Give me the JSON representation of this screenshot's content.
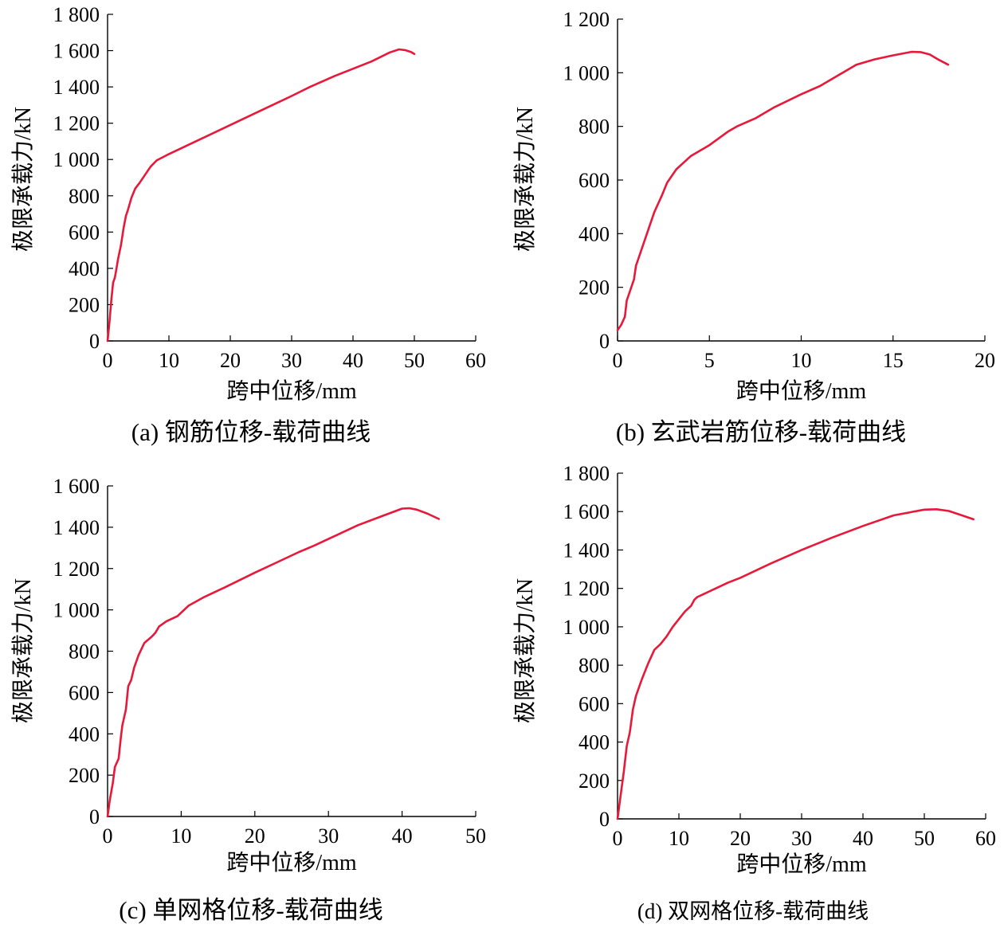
{
  "chart_data": [
    {
      "type": "line",
      "caption": "(a) 钢筋位移-载荷曲线",
      "xlabel": "跨中位移/mm",
      "ylabel": "极限承载力/kN",
      "xlim": [
        0,
        60
      ],
      "ylim": [
        0,
        1800
      ],
      "xticks": [
        0,
        10,
        20,
        30,
        40,
        50,
        60
      ],
      "xtick_labels": [
        "0",
        "10",
        "20",
        "30",
        "40",
        "50",
        "60"
      ],
      "yticks": [
        0,
        200,
        400,
        600,
        800,
        1000,
        1200,
        1400,
        1600,
        1800
      ],
      "ytick_labels": [
        "0",
        "200",
        "400",
        "600",
        "800",
        "1 000",
        "1 200",
        "1 400",
        "1 600",
        "1 800"
      ],
      "color": "#e8183a",
      "series": [
        {
          "x": [
            0,
            0.3,
            0.6,
            0.9,
            1.2,
            1.5,
            1.7,
            2.2,
            2.6,
            3.0,
            3.3,
            3.9,
            4.5,
            5.2,
            6.0,
            7.0,
            8.0,
            10,
            15,
            20,
            25,
            30,
            33,
            37,
            40,
            43,
            46,
            47.5,
            48.5,
            49.5,
            50
          ],
          "y": [
            0,
            100,
            220,
            320,
            350,
            410,
            450,
            530,
            620,
            690,
            720,
            790,
            840,
            870,
            910,
            960,
            995,
            1030,
            1110,
            1190,
            1270,
            1350,
            1400,
            1460,
            1500,
            1540,
            1590,
            1607,
            1603,
            1592,
            1582
          ]
        }
      ]
    },
    {
      "type": "line",
      "caption": "(b) 玄武岩筋位移-载荷曲线",
      "xlabel": "跨中位移/mm",
      "ylabel": "极限承载力/kN",
      "xlim": [
        0,
        20
      ],
      "ylim": [
        0,
        1200
      ],
      "xticks": [
        0,
        5,
        10,
        15,
        20
      ],
      "xtick_labels": [
        "0",
        "5",
        "10",
        "15",
        "20"
      ],
      "yticks": [
        0,
        200,
        400,
        600,
        800,
        1000,
        1200
      ],
      "ytick_labels": [
        "0",
        "200",
        "400",
        "600",
        "800",
        "1 000",
        "1 200"
      ],
      "color": "#e8183a",
      "series": [
        {
          "x": [
            0,
            0.2,
            0.4,
            0.5,
            0.7,
            0.9,
            1.0,
            1.1,
            1.4,
            1.7,
            2.0,
            2.4,
            2.7,
            3.2,
            4.0,
            5.0,
            6.0,
            6.5,
            7.5,
            8.5,
            10,
            11,
            12,
            13,
            14,
            15,
            16,
            16.5,
            17,
            17.5,
            18
          ],
          "y": [
            40,
            60,
            90,
            150,
            190,
            230,
            280,
            300,
            360,
            420,
            480,
            540,
            590,
            640,
            690,
            730,
            780,
            800,
            830,
            870,
            920,
            950,
            990,
            1030,
            1050,
            1065,
            1078,
            1077,
            1068,
            1048,
            1030
          ]
        }
      ]
    },
    {
      "type": "line",
      "caption": "(c) 单网格位移-载荷曲线",
      "xlabel": "跨中位移/mm",
      "ylabel": "极限承载力/kN",
      "xlim": [
        0,
        50
      ],
      "ylim": [
        0,
        1600
      ],
      "xticks": [
        0,
        10,
        20,
        30,
        40,
        50
      ],
      "xtick_labels": [
        "0",
        "10",
        "20",
        "30",
        "40",
        "50"
      ],
      "yticks": [
        0,
        200,
        400,
        600,
        800,
        1000,
        1200,
        1400,
        1600
      ],
      "ytick_labels": [
        "0",
        "200",
        "400",
        "600",
        "800",
        "1 000",
        "1 200",
        "1 400",
        "1 600"
      ],
      "color": "#e8183a",
      "series": [
        {
          "x": [
            0,
            0.3,
            0.7,
            1.0,
            1.5,
            1.8,
            2.0,
            2.5,
            2.8,
            3.2,
            3.6,
            4.2,
            5.0,
            6.0,
            6.5,
            7.0,
            8.0,
            9.5,
            11,
            13,
            16,
            20,
            23,
            26,
            28,
            31,
            34,
            37,
            40,
            41,
            42,
            43.5,
            45
          ],
          "y": [
            0,
            80,
            160,
            240,
            280,
            380,
            440,
            520,
            630,
            660,
            720,
            780,
            840,
            870,
            890,
            920,
            945,
            970,
            1020,
            1060,
            1110,
            1180,
            1230,
            1280,
            1310,
            1360,
            1410,
            1450,
            1490,
            1492,
            1485,
            1465,
            1440
          ]
        }
      ]
    },
    {
      "type": "line",
      "caption": "(d) 双网格位移-载荷曲线",
      "xlabel": "跨中位移/mm",
      "ylabel": "极限承载力/kN",
      "xlim": [
        0,
        60
      ],
      "ylim": [
        0,
        1800
      ],
      "xticks": [
        0,
        10,
        20,
        30,
        40,
        50,
        60
      ],
      "xtick_labels": [
        "0",
        "10",
        "20",
        "30",
        "40",
        "50",
        "60"
      ],
      "yticks": [
        0,
        200,
        400,
        600,
        800,
        1000,
        1200,
        1400,
        1600,
        1800
      ],
      "ytick_labels": [
        "0",
        "200",
        "400",
        "600",
        "800",
        "1 000",
        "1 200",
        "1 400",
        "1 600",
        "1 800"
      ],
      "color": "#e8183a",
      "series": [
        {
          "x": [
            0,
            0.5,
            1.0,
            1.5,
            2.0,
            2.5,
            3.0,
            4.0,
            5.0,
            6.0,
            7.0,
            8.0,
            9.0,
            10,
            11,
            12,
            12.5,
            13,
            14,
            16,
            18,
            20,
            25,
            30,
            35,
            40,
            45,
            50,
            52,
            54,
            56,
            58
          ],
          "y": [
            0,
            120,
            240,
            380,
            450,
            570,
            640,
            730,
            810,
            880,
            910,
            950,
            1000,
            1040,
            1080,
            1110,
            1140,
            1155,
            1170,
            1200,
            1230,
            1255,
            1330,
            1400,
            1465,
            1525,
            1580,
            1610,
            1612,
            1603,
            1582,
            1560
          ]
        }
      ]
    }
  ]
}
